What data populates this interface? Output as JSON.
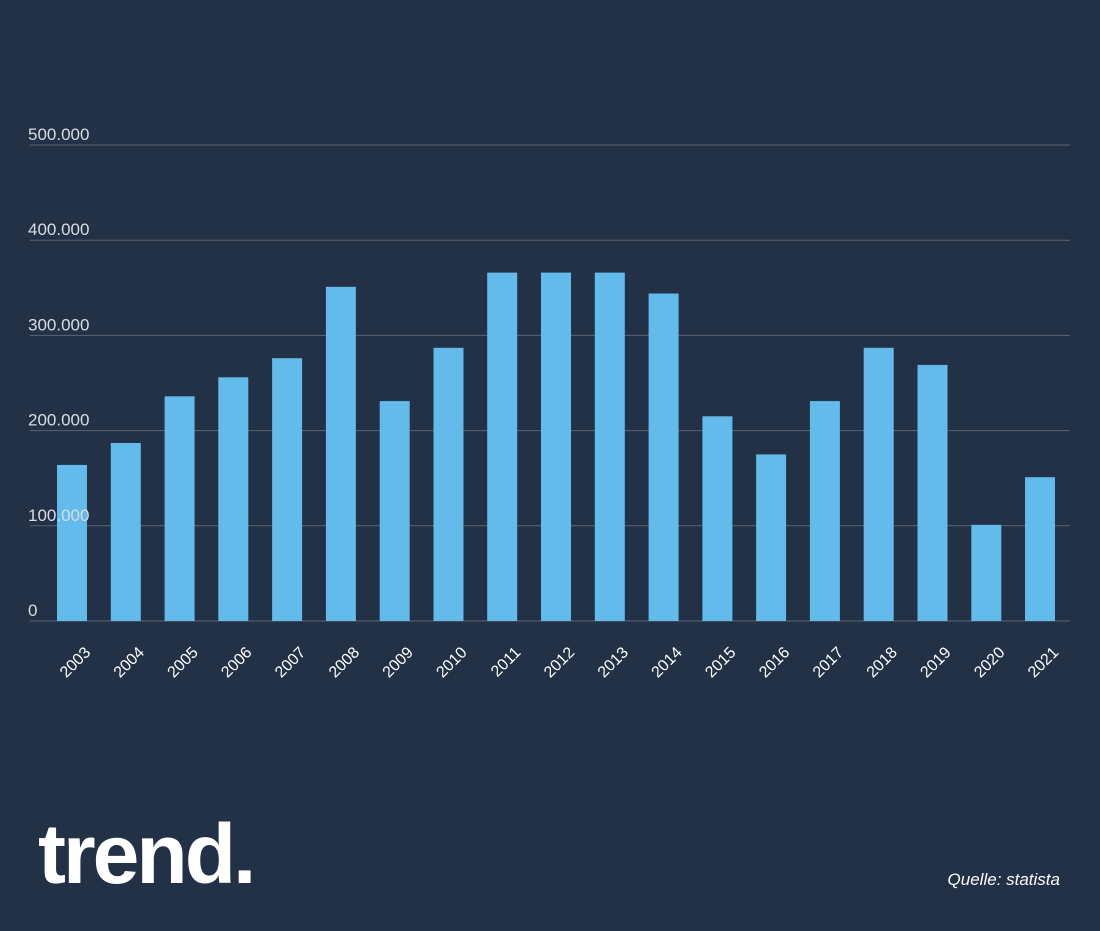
{
  "brand": {
    "logo_text": "trend."
  },
  "source": "Quelle: statista",
  "colors": {
    "background": "#223145",
    "bar": "#63bbeb",
    "gridline": "#5a6575",
    "axis_text": "#d9dde3",
    "tick_text": "#ffffff"
  },
  "chart_data": {
    "type": "bar",
    "categories": [
      "2003",
      "2004",
      "2005",
      "2006",
      "2007",
      "2008",
      "2009",
      "2010",
      "2011",
      "2012",
      "2013",
      "2014",
      "2015",
      "2016",
      "2017",
      "2018",
      "2019",
      "2020",
      "2021"
    ],
    "values": [
      164000,
      187000,
      236000,
      256000,
      276000,
      351000,
      231000,
      287000,
      366000,
      366000,
      366000,
      344000,
      215000,
      175000,
      231000,
      287000,
      269000,
      101000,
      151000
    ],
    "y_ticks": [
      0,
      100000,
      200000,
      300000,
      400000,
      500000
    ],
    "y_tick_labels": [
      "0",
      "100.000",
      "200.000",
      "300.000",
      "400.000",
      "500.000"
    ],
    "ylim": [
      0,
      500000
    ],
    "grid": true,
    "legend": "none"
  }
}
